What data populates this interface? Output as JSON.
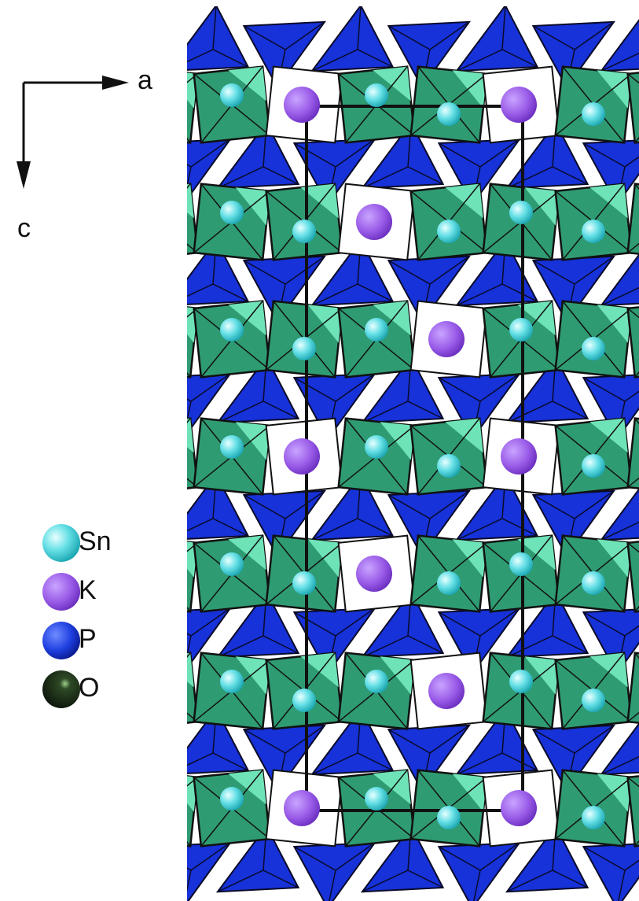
{
  "axes": {
    "a": "a",
    "c": "c"
  },
  "legend": [
    {
      "label": "Sn"
    },
    {
      "label": "K"
    },
    {
      "label": "P"
    },
    {
      "label": "O"
    }
  ]
}
